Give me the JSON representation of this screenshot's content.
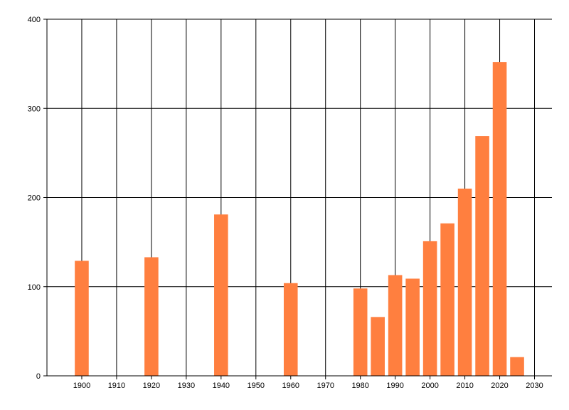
{
  "chart_data": {
    "type": "bar",
    "title": "",
    "xlabel": "",
    "ylabel": "",
    "x": [
      1900,
      1920,
      1940,
      1960,
      1980,
      1985,
      1990,
      1995,
      2000,
      2005,
      2010,
      2015,
      2020,
      2025
    ],
    "values": [
      129,
      133,
      181,
      104,
      98,
      66,
      113,
      109,
      151,
      171,
      210,
      269,
      352,
      21
    ],
    "xlim": [
      1890,
      2035
    ],
    "ylim": [
      0,
      400
    ],
    "x_ticks": [
      1900,
      1910,
      1920,
      1930,
      1940,
      1950,
      1960,
      1970,
      1980,
      1990,
      2000,
      2010,
      2020,
      2030
    ],
    "y_ticks": [
      0,
      100,
      200,
      300,
      400
    ],
    "grid": true,
    "bar_color": "#ff7f3f",
    "grid_color": "#000000",
    "background": "#ffffff"
  }
}
